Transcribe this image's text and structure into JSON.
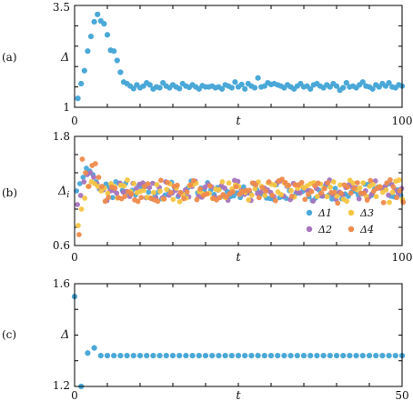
{
  "colors": {
    "Delta": "#4aa8d8",
    "Delta_1": "#4aa8d8",
    "Delta_2": "#a774bd",
    "Delta_3": "#f4c542",
    "Delta_4": "#ef8a4c"
  },
  "chart_data": [
    {
      "type": "scatter",
      "panel_label": "(a)",
      "xlabel": "t",
      "ylabel": "Δ",
      "xlim": [
        0,
        100
      ],
      "ylim": [
        1,
        3.5
      ],
      "x_ticks": [
        "0",
        "100"
      ],
      "y_ticks": [
        "1",
        "3.5"
      ],
      "grid": false,
      "series": [
        {
          "color_key": "Delta",
          "x": [
            1,
            2,
            3,
            4,
            5,
            6,
            7,
            8,
            9,
            10,
            11,
            12,
            13,
            14,
            15,
            16,
            17,
            18,
            19,
            20,
            21,
            22,
            23,
            24,
            25,
            26,
            27,
            28,
            29,
            30,
            31,
            32,
            33,
            34,
            35,
            36,
            37,
            38,
            39,
            40,
            41,
            42,
            43,
            44,
            45,
            46,
            47,
            48,
            49,
            50,
            51,
            52,
            53,
            54,
            55,
            56,
            57,
            58,
            59,
            60,
            61,
            62,
            63,
            64,
            65,
            66,
            67,
            68,
            69,
            70,
            71,
            72,
            73,
            74,
            75,
            76,
            77,
            78,
            79,
            80,
            81,
            82,
            83,
            84,
            85,
            86,
            87,
            88,
            89,
            90,
            91,
            92,
            93,
            94,
            95,
            96,
            97,
            98,
            99,
            100
          ],
          "y": [
            1.22,
            1.58,
            1.9,
            2.38,
            2.74,
            3.1,
            3.28,
            3.12,
            3.05,
            2.78,
            2.4,
            2.38,
            2.15,
            1.86,
            1.62,
            1.58,
            1.52,
            1.46,
            1.55,
            1.48,
            1.52,
            1.6,
            1.55,
            1.45,
            1.5,
            1.48,
            1.6,
            1.52,
            1.48,
            1.55,
            1.5,
            1.46,
            1.58,
            1.52,
            1.49,
            1.55,
            1.5,
            1.45,
            1.53,
            1.5,
            1.5,
            1.52,
            1.48,
            1.5,
            1.45,
            1.55,
            1.52,
            1.48,
            1.62,
            1.5,
            1.56,
            1.45,
            1.58,
            1.52,
            1.48,
            1.72,
            1.5,
            1.52,
            1.6,
            1.56,
            1.58,
            1.55,
            1.52,
            1.48,
            1.55,
            1.5,
            1.45,
            1.52,
            1.58,
            1.5,
            1.52,
            1.45,
            1.55,
            1.58,
            1.52,
            1.48,
            1.55,
            1.5,
            1.58,
            1.52,
            1.42,
            1.48,
            1.6,
            1.5,
            1.52,
            1.48,
            1.55,
            1.62,
            1.52,
            1.5,
            1.45,
            1.55,
            1.5,
            1.58,
            1.52,
            1.6,
            1.5,
            1.48,
            1.55,
            1.52
          ]
        }
      ]
    },
    {
      "type": "scatter",
      "panel_label": "(b)",
      "xlabel": "t",
      "ylabel": "Δi",
      "xlim": [
        0,
        100
      ],
      "ylim": [
        0.6,
        1.8
      ],
      "x_ticks": [
        "0",
        "100"
      ],
      "y_ticks": [
        "0.6",
        "1.8"
      ],
      "grid": false,
      "legend_position": "lower-right",
      "series": [
        {
          "name": "Δ1",
          "color_key": "Delta_1",
          "spread": 0.06,
          "lag": 1.2,
          "early": [
            1.2,
            1.28,
            1.35,
            1.45,
            1.42,
            1.38,
            1.3,
            1.22
          ]
        },
        {
          "name": "Δ2",
          "color_key": "Delta_2",
          "spread": 0.065,
          "lag": 0.7,
          "early": [
            1.05,
            1.15,
            1.3,
            1.38,
            1.4,
            1.35,
            1.28,
            1.22
          ]
        },
        {
          "name": "Δ3",
          "color_key": "Delta_3",
          "spread": 0.07,
          "lag": 0.3,
          "early": [
            0.82,
            1.0,
            1.12,
            1.25,
            1.3,
            1.28,
            1.25,
            1.2
          ]
        },
        {
          "name": "Δ4",
          "color_key": "Delta_4",
          "spread": 0.075,
          "lag": 1.7,
          "early": [
            0.72,
            1.55,
            1.4,
            1.25,
            1.48,
            1.5,
            1.35,
            1.25
          ]
        }
      ],
      "steady_level": 1.2
    },
    {
      "type": "scatter",
      "panel_label": "(c)",
      "xlabel": "t",
      "ylabel": "Δ",
      "xlim": [
        0,
        50
      ],
      "ylim": [
        1.2,
        1.6
      ],
      "x_ticks": [
        "0",
        "50"
      ],
      "y_ticks": [
        "1.2",
        "1.6"
      ],
      "grid": false,
      "series": [
        {
          "color_key": "Delta",
          "x": [
            0,
            1,
            2,
            3,
            4,
            5,
            6,
            7,
            8,
            9,
            10,
            11,
            12,
            13,
            14,
            15,
            16,
            17,
            18,
            19,
            20,
            21,
            22,
            23,
            24,
            25,
            26,
            27,
            28,
            29,
            30,
            31,
            32,
            33,
            34,
            35,
            36,
            37,
            38,
            39,
            40,
            41,
            42,
            43,
            44,
            45,
            46,
            47,
            48,
            49,
            50
          ],
          "y": [
            1.55,
            1.2,
            1.33,
            1.35,
            1.32,
            1.32,
            1.32,
            1.32,
            1.32,
            1.32,
            1.32,
            1.32,
            1.32,
            1.32,
            1.32,
            1.32,
            1.32,
            1.32,
            1.32,
            1.32,
            1.32,
            1.32,
            1.32,
            1.32,
            1.32,
            1.32,
            1.32,
            1.32,
            1.32,
            1.32,
            1.32,
            1.32,
            1.32,
            1.32,
            1.32,
            1.32,
            1.32,
            1.32,
            1.32,
            1.32,
            1.32,
            1.32,
            1.32,
            1.32,
            1.32,
            1.32,
            1.32,
            1.32,
            1.32,
            1.32,
            1.32
          ]
        }
      ]
    }
  ]
}
